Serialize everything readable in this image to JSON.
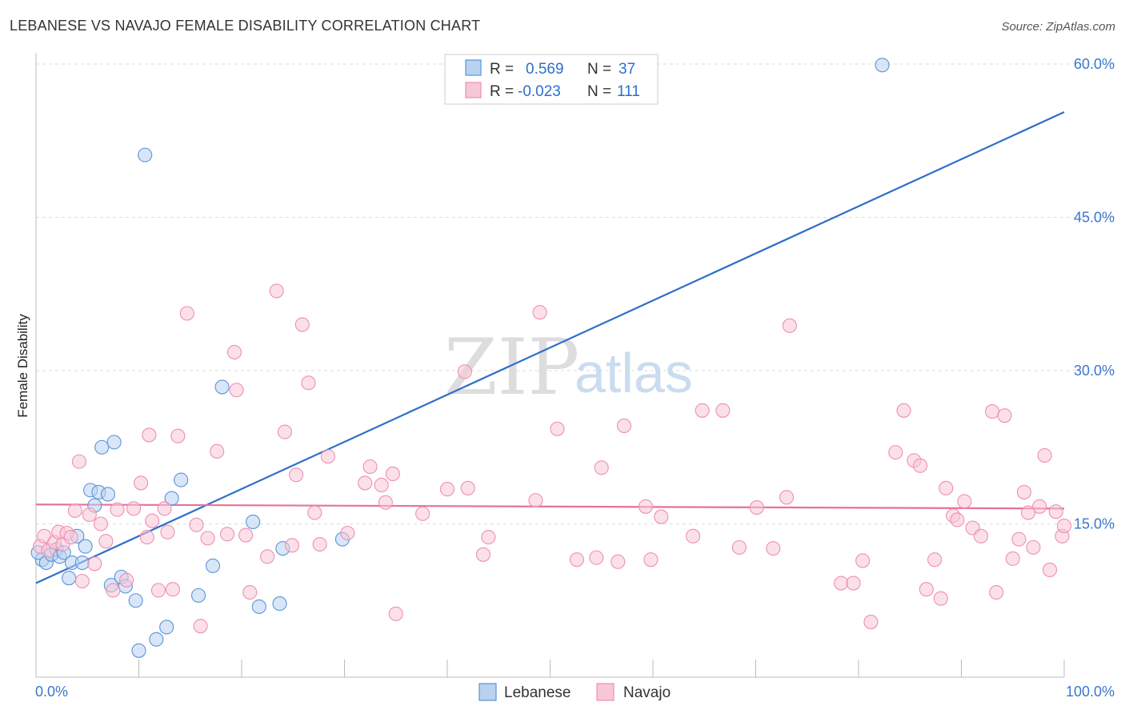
{
  "chart_data": {
    "type": "scatter",
    "title": "LEBANESE VS NAVAJO FEMALE DISABILITY CORRELATION CHART",
    "source": "Source: ZipAtlas.com",
    "ylabel": "Female Disability",
    "xlabel": "",
    "xlim": [
      0,
      100
    ],
    "ylim": [
      0,
      60
    ],
    "x_tick_labels": [
      "0.0%",
      "100.0%"
    ],
    "y_ticks": [
      {
        "value": 15,
        "label": "15.0%"
      },
      {
        "value": 30,
        "label": "30.0%"
      },
      {
        "value": 45,
        "label": "45.0%"
      },
      {
        "value": 60,
        "label": "60.0%"
      }
    ],
    "grid": true,
    "legend_position": "top-center",
    "watermark": {
      "zip": "ZIP",
      "atlas": "atlas"
    },
    "series": [
      {
        "name": "Lebanese",
        "color": "#5b93d9",
        "fill": "#b9d2f0",
        "line_color": "#2c6fc9",
        "r": "0.569",
        "n": "37",
        "trend": {
          "x0": 0,
          "y0": 9.2,
          "x1": 100,
          "y1": 55.3
        },
        "points": [
          [
            0.6,
            11.5
          ],
          [
            1.0,
            11.2
          ],
          [
            1.5,
            12.0
          ],
          [
            2.0,
            12.5
          ],
          [
            2.3,
            11.8
          ],
          [
            2.7,
            12.2
          ],
          [
            3.2,
            9.7
          ],
          [
            3.5,
            11.2
          ],
          [
            4.0,
            13.8
          ],
          [
            4.5,
            11.2
          ],
          [
            4.8,
            12.8
          ],
          [
            5.3,
            18.3
          ],
          [
            5.7,
            16.8
          ],
          [
            6.1,
            18.1
          ],
          [
            6.4,
            22.5
          ],
          [
            7.0,
            17.9
          ],
          [
            7.3,
            9.0
          ],
          [
            7.6,
            23.0
          ],
          [
            8.3,
            9.8
          ],
          [
            8.7,
            8.9
          ],
          [
            9.7,
            7.5
          ],
          [
            10.0,
            2.6
          ],
          [
            10.6,
            51.1
          ],
          [
            11.7,
            3.7
          ],
          [
            12.7,
            4.9
          ],
          [
            13.2,
            17.5
          ],
          [
            14.1,
            19.3
          ],
          [
            15.8,
            8.0
          ],
          [
            17.2,
            10.9
          ],
          [
            18.1,
            28.4
          ],
          [
            21.1,
            15.2
          ],
          [
            21.7,
            6.9
          ],
          [
            23.7,
            7.2
          ],
          [
            24.0,
            12.6
          ],
          [
            29.8,
            13.5
          ],
          [
            82.3,
            59.9
          ],
          [
            0.2,
            12.2
          ]
        ]
      },
      {
        "name": "Navajo",
        "color": "#ee8fb0",
        "fill": "#f7c6d7",
        "line_color": "#e5729a",
        "r": "-0.023",
        "n": "111",
        "trend": {
          "x0": 0,
          "y0": 16.9,
          "x1": 100,
          "y1": 16.5
        },
        "points": [
          [
            0.4,
            12.8
          ],
          [
            0.8,
            13.8
          ],
          [
            1.2,
            12.4
          ],
          [
            1.8,
            13.2
          ],
          [
            2.2,
            14.2
          ],
          [
            2.6,
            13.0
          ],
          [
            3.0,
            14.1
          ],
          [
            3.4,
            13.7
          ],
          [
            3.8,
            16.3
          ],
          [
            4.2,
            21.1
          ],
          [
            4.5,
            9.4
          ],
          [
            5.2,
            15.9
          ],
          [
            5.7,
            11.1
          ],
          [
            6.3,
            15.0
          ],
          [
            6.8,
            13.3
          ],
          [
            7.5,
            8.5
          ],
          [
            7.9,
            16.4
          ],
          [
            8.8,
            9.5
          ],
          [
            9.5,
            16.5
          ],
          [
            10.2,
            19.0
          ],
          [
            10.8,
            13.7
          ],
          [
            11.0,
            23.7
          ],
          [
            11.3,
            15.3
          ],
          [
            11.9,
            8.5
          ],
          [
            12.5,
            16.5
          ],
          [
            12.8,
            14.2
          ],
          [
            13.3,
            8.6
          ],
          [
            13.8,
            23.6
          ],
          [
            14.7,
            35.6
          ],
          [
            15.6,
            14.9
          ],
          [
            16.0,
            5.0
          ],
          [
            16.7,
            13.6
          ],
          [
            17.6,
            22.1
          ],
          [
            18.6,
            14.0
          ],
          [
            19.3,
            31.8
          ],
          [
            19.5,
            28.1
          ],
          [
            20.4,
            13.9
          ],
          [
            20.8,
            8.3
          ],
          [
            22.5,
            11.8
          ],
          [
            23.4,
            37.8
          ],
          [
            24.2,
            24.0
          ],
          [
            24.9,
            12.9
          ],
          [
            25.3,
            19.8
          ],
          [
            25.9,
            34.5
          ],
          [
            26.5,
            28.8
          ],
          [
            27.1,
            16.1
          ],
          [
            27.6,
            13.0
          ],
          [
            28.4,
            21.6
          ],
          [
            30.3,
            14.1
          ],
          [
            32.0,
            19.0
          ],
          [
            32.5,
            20.6
          ],
          [
            33.6,
            18.8
          ],
          [
            34.0,
            17.1
          ],
          [
            34.7,
            19.9
          ],
          [
            35.0,
            6.2
          ],
          [
            37.6,
            16.0
          ],
          [
            40.0,
            18.4
          ],
          [
            41.7,
            29.9
          ],
          [
            42.0,
            18.5
          ],
          [
            43.5,
            12.0
          ],
          [
            44.0,
            13.7
          ],
          [
            48.6,
            17.3
          ],
          [
            49.0,
            35.7
          ],
          [
            50.7,
            24.3
          ],
          [
            52.6,
            11.5
          ],
          [
            54.5,
            11.7
          ],
          [
            55.0,
            20.5
          ],
          [
            56.6,
            11.3
          ],
          [
            57.2,
            24.6
          ],
          [
            59.3,
            16.7
          ],
          [
            59.8,
            11.5
          ],
          [
            60.8,
            15.7
          ],
          [
            63.9,
            13.8
          ],
          [
            64.8,
            26.1
          ],
          [
            66.8,
            26.1
          ],
          [
            68.4,
            12.7
          ],
          [
            70.1,
            16.6
          ],
          [
            71.7,
            12.6
          ],
          [
            73.0,
            17.6
          ],
          [
            73.3,
            34.4
          ],
          [
            78.3,
            9.2
          ],
          [
            79.5,
            9.2
          ],
          [
            80.4,
            11.4
          ],
          [
            81.2,
            5.4
          ],
          [
            83.6,
            22.0
          ],
          [
            84.4,
            26.1
          ],
          [
            85.4,
            21.2
          ],
          [
            86.0,
            20.7
          ],
          [
            86.6,
            8.6
          ],
          [
            87.4,
            11.5
          ],
          [
            88.0,
            7.7
          ],
          [
            88.5,
            18.5
          ],
          [
            89.2,
            15.8
          ],
          [
            89.6,
            15.4
          ],
          [
            90.3,
            17.2
          ],
          [
            91.1,
            14.6
          ],
          [
            91.9,
            13.8
          ],
          [
            93.0,
            26.0
          ],
          [
            93.4,
            8.3
          ],
          [
            94.2,
            25.6
          ],
          [
            95.0,
            11.6
          ],
          [
            95.6,
            13.5
          ],
          [
            96.1,
            18.1
          ],
          [
            96.5,
            16.1
          ],
          [
            97.0,
            12.7
          ],
          [
            97.6,
            16.7
          ],
          [
            98.1,
            21.7
          ],
          [
            98.6,
            10.5
          ],
          [
            99.2,
            16.2
          ],
          [
            99.8,
            13.8
          ],
          [
            100.0,
            14.8
          ]
        ]
      }
    ]
  }
}
